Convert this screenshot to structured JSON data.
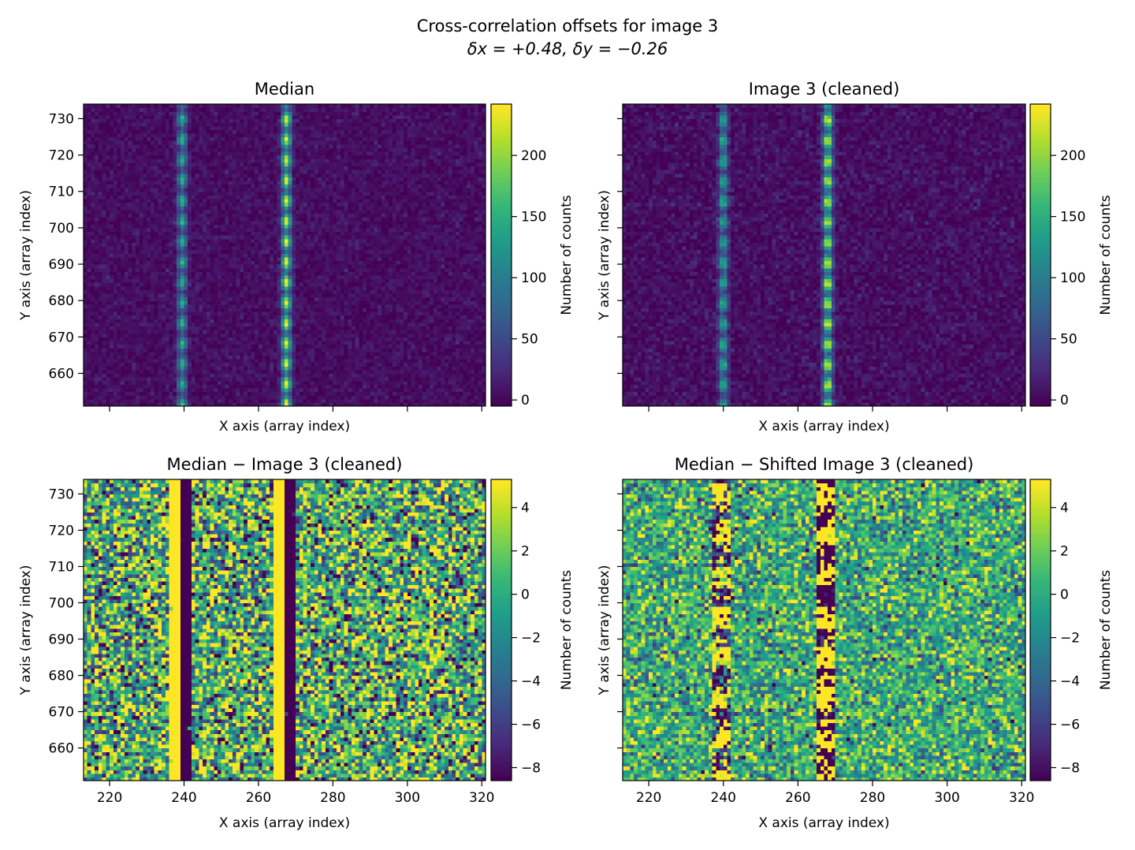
{
  "figure": {
    "title": "Cross-correlation offsets for image 3",
    "subtitle": "δx = +0.48, δy = −0.26"
  },
  "colormap": {
    "name": "viridis",
    "stops": [
      "#440154",
      "#482878",
      "#3e4989",
      "#31688e",
      "#26828e",
      "#1f9e89",
      "#35b779",
      "#6ece58",
      "#b5de2b",
      "#fde725"
    ]
  },
  "chart_data": [
    {
      "type": "heatmap",
      "id": "median",
      "title": "Median",
      "xlabel": "X axis (array index)",
      "ylabel": "Y axis (array index)",
      "xlim": [
        213,
        321
      ],
      "ylim": [
        651,
        734
      ],
      "xticks": [
        220,
        240,
        260,
        280,
        300,
        320
      ],
      "yticks": [
        660,
        670,
        680,
        690,
        700,
        710,
        720,
        730
      ],
      "show_xticklabels": false,
      "show_yticklabels": true,
      "show_xlabel": true,
      "show_ylabel": true,
      "model": "spectrum",
      "offset": [
        0,
        0
      ],
      "column_peaks": [
        {
          "x": 239,
          "amp": 150
        },
        {
          "x": 267,
          "amp": 240
        }
      ],
      "row_period": 5.6,
      "noise": 8,
      "colorbar": {
        "label": "Number of counts",
        "vmin": -5,
        "vmax": 242,
        "ticks": [
          0,
          50,
          100,
          150,
          200
        ],
        "tick_labels": [
          "0",
          "50",
          "100",
          "150",
          "200"
        ]
      }
    },
    {
      "type": "heatmap",
      "id": "image3",
      "title": "Image 3 (cleaned)",
      "xlabel": "X axis (array index)",
      "ylabel": "Y axis (array index)",
      "xlim": [
        213,
        321
      ],
      "ylim": [
        651,
        734
      ],
      "xticks": [
        220,
        240,
        260,
        280,
        300,
        320
      ],
      "yticks": [
        660,
        670,
        680,
        690,
        700,
        710,
        720,
        730
      ],
      "show_xticklabels": false,
      "show_yticklabels": false,
      "show_xlabel": true,
      "show_ylabel": true,
      "model": "spectrum",
      "offset": [
        -0.5,
        0.3
      ],
      "column_peaks": [
        {
          "x": 239,
          "amp": 150
        },
        {
          "x": 267,
          "amp": 240
        }
      ],
      "row_period": 5.6,
      "noise": 10,
      "colorbar": {
        "label": "Number of counts",
        "vmin": -5,
        "vmax": 242,
        "ticks": [
          0,
          50,
          100,
          150,
          200
        ],
        "tick_labels": [
          "0",
          "50",
          "100",
          "150",
          "200"
        ]
      }
    },
    {
      "type": "heatmap",
      "id": "diff",
      "title": "Median − Image 3 (cleaned)",
      "xlabel": "X axis (array index)",
      "ylabel": "Y axis (array index)",
      "xlim": [
        213,
        321
      ],
      "ylim": [
        651,
        734
      ],
      "xticks": [
        220,
        240,
        260,
        280,
        300,
        320
      ],
      "yticks": [
        660,
        670,
        680,
        690,
        700,
        710,
        720,
        730
      ],
      "show_xticklabels": true,
      "show_yticklabels": true,
      "show_xlabel": true,
      "show_ylabel": true,
      "model": "residual",
      "offset": [
        0,
        0
      ],
      "column_peaks": [
        {
          "x": 239,
          "amp": 1.0
        },
        {
          "x": 267,
          "amp": 1.0
        }
      ],
      "row_period": 5.6,
      "noise": 5,
      "colorbar": {
        "label": "Number of counts",
        "vmin": -8.6,
        "vmax": 5.3,
        "ticks": [
          -8,
          -6,
          -4,
          -2,
          0,
          2,
          4
        ],
        "tick_labels": [
          "−8",
          "−6",
          "−4",
          "−2",
          "0",
          "2",
          "4"
        ]
      }
    },
    {
      "type": "heatmap",
      "id": "shifted_diff",
      "title": "Median − Shifted Image 3 (cleaned)",
      "xlabel": "X axis (array index)",
      "ylabel": "Y axis (array index)",
      "xlim": [
        213,
        321
      ],
      "ylim": [
        651,
        734
      ],
      "xticks": [
        220,
        240,
        260,
        280,
        300,
        320
      ],
      "yticks": [
        660,
        670,
        680,
        690,
        700,
        710,
        720,
        730
      ],
      "show_xticklabels": true,
      "show_yticklabels": false,
      "show_xlabel": true,
      "show_ylabel": true,
      "model": "residual_shifted",
      "offset": [
        0,
        0
      ],
      "column_peaks": [
        {
          "x": 239,
          "amp": 0.6
        },
        {
          "x": 267,
          "amp": 1.0
        }
      ],
      "row_period": 5.6,
      "noise": 3,
      "colorbar": {
        "label": "Number of counts",
        "vmin": -8.6,
        "vmax": 5.3,
        "ticks": [
          -8,
          -6,
          -4,
          -2,
          0,
          2,
          4
        ],
        "tick_labels": [
          "−8",
          "−6",
          "−4",
          "−2",
          "0",
          "2",
          "4"
        ]
      }
    }
  ]
}
